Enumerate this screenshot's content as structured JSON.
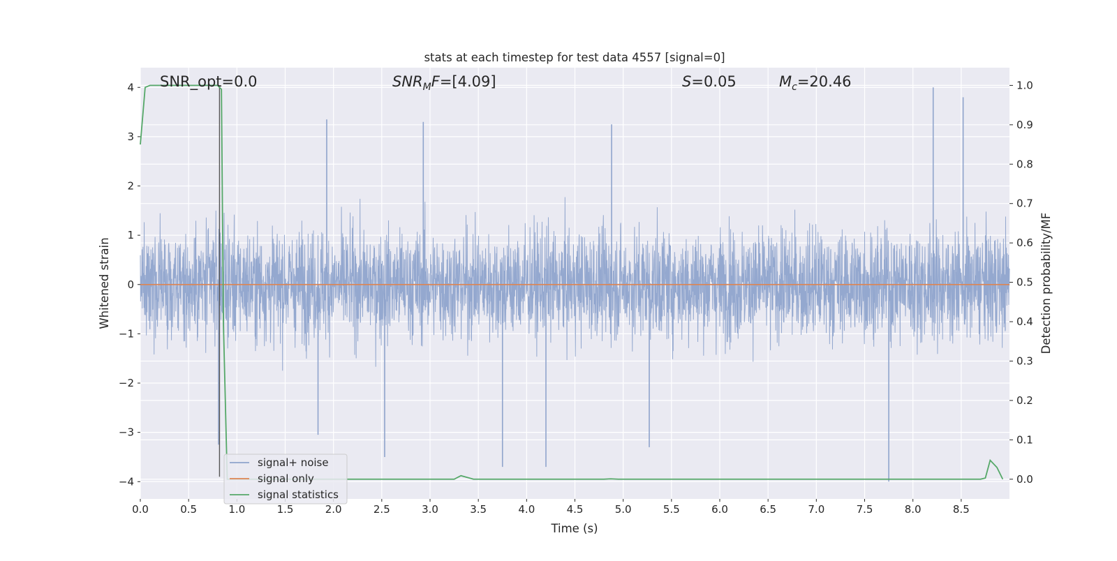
{
  "chart_data": {
    "type": "line",
    "title": "stats at each timestep for test data 4557 [signal=0]",
    "xlabel": "Time (s)",
    "ylabel": "Whitened strain",
    "ylabel_right": "Detection probability/MF",
    "xlim": [
      0.0,
      9.0
    ],
    "ylim": [
      -4.35,
      4.4
    ],
    "ylim_right": [
      -0.05,
      1.045
    ],
    "xticks": [
      0.0,
      0.5,
      1.0,
      1.5,
      2.0,
      2.5,
      3.0,
      3.5,
      4.0,
      4.5,
      5.0,
      5.5,
      6.0,
      6.5,
      7.0,
      7.5,
      8.0,
      8.5
    ],
    "xtick_labels": [
      "0.0",
      "0.5",
      "1.0",
      "1.5",
      "2.0",
      "2.5",
      "3.0",
      "3.5",
      "4.0",
      "4.5",
      "5.0",
      "5.5",
      "6.0",
      "6.5",
      "7.0",
      "7.5",
      "8.0",
      "8.5"
    ],
    "yticks": [
      -4,
      -3,
      -2,
      -1,
      0,
      1,
      2,
      3,
      4
    ],
    "ytick_labels": [
      "−4",
      "−3",
      "−2",
      "−1",
      "0",
      "1",
      "2",
      "3",
      "4"
    ],
    "yticks_right": [
      0.0,
      0.1,
      0.2,
      0.3,
      0.4,
      0.5,
      0.6,
      0.7,
      0.8,
      0.9,
      1.0
    ],
    "ytick_labels_right": [
      "0.0",
      "0.1",
      "0.2",
      "0.3",
      "0.4",
      "0.5",
      "0.6",
      "0.7",
      "0.8",
      "0.9",
      "1.0"
    ],
    "grid": true,
    "legend_position": "lower-left",
    "annotations": {
      "snr_opt": "SNR_opt=0.0",
      "snr_mf": "=[4.09]",
      "snr_mf_symbol": "SNR",
      "snr_mf_sub": "M",
      "snr_mf_suffix": "F",
      "s_value": "=0.05",
      "s_symbol": "S",
      "mc_value": "=20.46",
      "mc_symbol": "M",
      "mc_sub": "c"
    },
    "series": [
      {
        "name": "signal+ noise",
        "color": "#8fa4cc",
        "kind": "noise",
        "t_end": 9.0,
        "spikes": [
          {
            "x": 0.81,
            "y": -3.25
          },
          {
            "x": 1.84,
            "y": -3.05
          },
          {
            "x": 1.93,
            "y": 3.35
          },
          {
            "x": 2.53,
            "y": -3.5
          },
          {
            "x": 2.93,
            "y": 3.3
          },
          {
            "x": 3.75,
            "y": -3.7
          },
          {
            "x": 4.2,
            "y": -3.7
          },
          {
            "x": 4.88,
            "y": 3.25
          },
          {
            "x": 5.27,
            "y": -3.3
          },
          {
            "x": 7.75,
            "y": -4.0
          },
          {
            "x": 8.21,
            "y": 4.0
          },
          {
            "x": 8.52,
            "y": 3.8
          }
        ]
      },
      {
        "name": "signal only",
        "color": "#dd8452",
        "kind": "flat",
        "x": [
          0.0,
          9.0
        ],
        "y": [
          0.0,
          0.0
        ]
      },
      {
        "name": "signal statistics",
        "color": "#55a868",
        "kind": "right",
        "x": [
          0.0,
          0.05,
          0.1,
          0.2,
          0.3,
          0.4,
          0.5,
          0.6,
          0.7,
          0.75,
          0.8,
          0.84,
          0.86,
          0.9,
          0.95,
          1.0,
          2.0,
          3.0,
          3.25,
          3.32,
          3.45,
          3.6,
          4.0,
          4.8,
          4.87,
          4.95,
          5.5,
          6.0,
          7.0,
          8.0,
          8.7,
          8.75,
          8.8,
          8.87,
          8.93
        ],
        "y": [
          0.85,
          0.995,
          1.0,
          1.0,
          1.0,
          1.0,
          1.0,
          1.0,
          1.0,
          1.0,
          1.0,
          0.99,
          0.4,
          0.0,
          0.0,
          0.0,
          0.0,
          0.0,
          0.0,
          0.009,
          0.0,
          0.0,
          0.0,
          0.0,
          0.001,
          0.0,
          0.0,
          0.0,
          0.0,
          0.0,
          0.0,
          0.003,
          0.048,
          0.03,
          0.0
        ]
      }
    ],
    "marker_line": {
      "x": 0.82,
      "y_from": -3.9,
      "y_to": 4.0,
      "color": "#555555"
    }
  }
}
